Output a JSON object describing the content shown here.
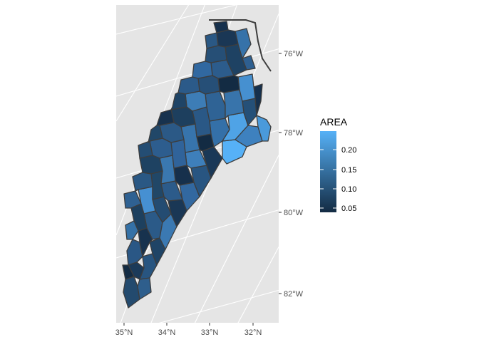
{
  "map": {
    "projection": "rotated",
    "panel_background": "#e5e5e5",
    "grid_color": "#ffffff",
    "boundary_color": "#3d3d3d",
    "x_axis": {
      "ticks": [
        "35°N",
        "34°N",
        "33°N",
        "32°N"
      ]
    },
    "y_axis": {
      "ticks": [
        "76°W",
        "78°W",
        "80°W",
        "82°W"
      ]
    }
  },
  "legend": {
    "title": "AREA",
    "labels": [
      "0.20",
      "0.15",
      "0.10",
      "0.05"
    ],
    "low_color": "#132b43",
    "high_color": "#56b1f7"
  },
  "regions": {
    "count": 100,
    "fill_variable": "AREA",
    "range": [
      0.04,
      0.24
    ]
  }
}
